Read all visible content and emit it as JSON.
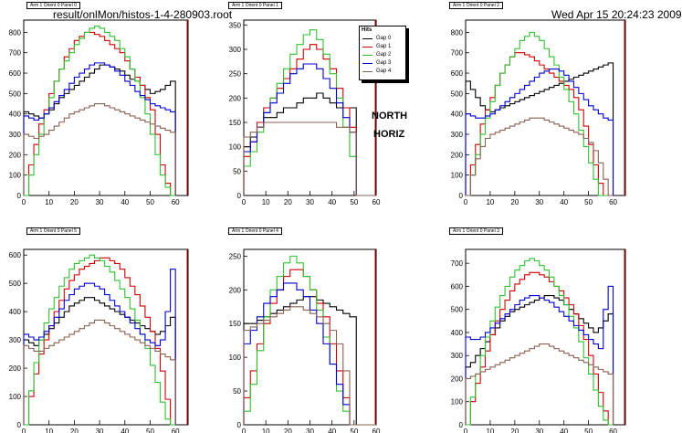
{
  "header": {
    "filename": "result/onlMon/histos-1-4-280903.root",
    "datetime": "Wed Apr 15 20:24:23 2009"
  },
  "annotations": {
    "line1": "NORTH",
    "line2": "HORIZ"
  },
  "legend": {
    "title": "Hits",
    "entries": [
      {
        "name": "Gap 0",
        "color": "#000000"
      },
      {
        "name": "Gap 1",
        "color": "#d00000"
      },
      {
        "name": "Gap 2",
        "color": "#30c030"
      },
      {
        "name": "Gap 3",
        "color": "#0000d0"
      },
      {
        "name": "Gap 4",
        "color": "#8b6050"
      }
    ]
  },
  "chart_data": [
    {
      "type": "line",
      "title": "Arm 1 Orient 0 Panel 0",
      "xlim": [
        0,
        65
      ],
      "ylim": [
        0,
        860
      ],
      "xticks": [
        0,
        10,
        20,
        30,
        40,
        50,
        60
      ],
      "yticks": [
        0,
        100,
        200,
        300,
        400,
        500,
        600,
        700,
        800
      ],
      "series": [
        {
          "name": "Gap 0",
          "values": [
            410,
            400,
            390,
            380,
            400,
            420,
            450,
            480,
            500,
            520,
            540,
            560,
            580,
            600,
            620,
            640,
            640,
            630,
            620,
            610,
            590,
            570,
            560,
            540,
            520,
            500,
            510,
            520,
            540,
            560
          ]
        },
        {
          "name": "Gap 1",
          "values": [
            0,
            150,
            250,
            350,
            420,
            500,
            560,
            620,
            680,
            720,
            760,
            780,
            800,
            800,
            790,
            780,
            760,
            740,
            720,
            700,
            660,
            620,
            580,
            540,
            480,
            420,
            300,
            150,
            60,
            0
          ]
        },
        {
          "name": "Gap 2",
          "values": [
            0,
            100,
            200,
            300,
            400,
            480,
            560,
            620,
            660,
            700,
            740,
            770,
            800,
            820,
            830,
            820,
            800,
            780,
            760,
            720,
            680,
            620,
            560,
            480,
            400,
            300,
            200,
            100,
            40,
            0
          ]
        },
        {
          "name": "Gap 3",
          "values": [
            390,
            380,
            370,
            380,
            400,
            430,
            460,
            490,
            520,
            550,
            580,
            600,
            620,
            640,
            650,
            650,
            640,
            630,
            610,
            590,
            560,
            540,
            510,
            490,
            470,
            450,
            440,
            430,
            420,
            410
          ]
        },
        {
          "name": "Gap 4",
          "values": [
            300,
            290,
            280,
            290,
            300,
            320,
            340,
            360,
            380,
            400,
            410,
            420,
            430,
            440,
            450,
            450,
            440,
            430,
            420,
            410,
            400,
            390,
            380,
            370,
            360,
            350,
            340,
            330,
            320,
            310
          ]
        }
      ]
    },
    {
      "type": "line",
      "title": "Arm 1 Orient 0 Panel 1",
      "xlim": [
        0,
        60
      ],
      "ylim": [
        0,
        360
      ],
      "xticks": [
        0,
        10,
        20,
        30,
        40,
        50,
        60
      ],
      "yticks": [
        0,
        50,
        100,
        150,
        200,
        250,
        300,
        350
      ],
      "series": [
        {
          "name": "Gap 0",
          "values": [
            100,
            120,
            140,
            160,
            160,
            170,
            180,
            180,
            190,
            200,
            200,
            210,
            200,
            190,
            180,
            180,
            180,
            0,
            0,
            0
          ]
        },
        {
          "name": "Gap 1",
          "values": [
            80,
            110,
            150,
            180,
            200,
            220,
            240,
            260,
            280,
            300,
            310,
            300,
            280,
            260,
            220,
            180,
            140,
            0,
            0,
            0
          ]
        },
        {
          "name": "Gap 2",
          "values": [
            60,
            90,
            130,
            170,
            200,
            230,
            260,
            290,
            310,
            330,
            340,
            320,
            290,
            250,
            200,
            140,
            80,
            0,
            0,
            0
          ]
        },
        {
          "name": "Gap 3",
          "values": [
            90,
            110,
            140,
            170,
            190,
            210,
            230,
            250,
            260,
            270,
            270,
            260,
            240,
            220,
            190,
            160,
            130,
            0,
            0,
            0
          ]
        },
        {
          "name": "Gap 4",
          "values": [
            120,
            130,
            140,
            150,
            150,
            150,
            150,
            150,
            150,
            150,
            150,
            150,
            150,
            150,
            140,
            140,
            130,
            0,
            0,
            0
          ]
        }
      ]
    },
    {
      "type": "line",
      "title": "Arm 1 Orient 0 Panel 2",
      "xlim": [
        0,
        65
      ],
      "ylim": [
        0,
        860
      ],
      "xticks": [
        0,
        10,
        20,
        30,
        40,
        50,
        60
      ],
      "yticks": [
        0,
        100,
        200,
        300,
        400,
        500,
        600,
        700,
        800
      ],
      "series": [
        {
          "name": "Gap 0",
          "values": [
            560,
            520,
            480,
            440,
            420,
            410,
            420,
            430,
            440,
            450,
            460,
            470,
            480,
            490,
            500,
            510,
            520,
            530,
            540,
            550,
            560,
            570,
            580,
            590,
            600,
            610,
            620,
            630,
            640,
            650
          ]
        },
        {
          "name": "Gap 1",
          "values": [
            0,
            150,
            250,
            350,
            420,
            480,
            540,
            600,
            640,
            680,
            700,
            700,
            690,
            680,
            660,
            640,
            620,
            600,
            580,
            560,
            540,
            520,
            480,
            420,
            340,
            250,
            150,
            60,
            0,
            0
          ]
        },
        {
          "name": "Gap 2",
          "values": [
            0,
            100,
            200,
            300,
            380,
            460,
            540,
            600,
            640,
            680,
            720,
            760,
            780,
            800,
            780,
            760,
            720,
            680,
            640,
            580,
            520,
            460,
            400,
            320,
            240,
            160,
            80,
            0,
            0,
            0
          ]
        },
        {
          "name": "Gap 3",
          "values": [
            400,
            390,
            380,
            380,
            390,
            400,
            420,
            440,
            460,
            480,
            500,
            520,
            540,
            560,
            580,
            600,
            610,
            620,
            620,
            610,
            590,
            560,
            530,
            500,
            470,
            440,
            420,
            400,
            380,
            370
          ]
        },
        {
          "name": "Gap 4",
          "values": [
            0,
            100,
            180,
            240,
            280,
            300,
            310,
            320,
            330,
            340,
            350,
            360,
            370,
            380,
            380,
            380,
            370,
            360,
            350,
            340,
            330,
            320,
            310,
            300,
            280,
            260,
            220,
            160,
            80,
            0
          ]
        }
      ]
    },
    {
      "type": "line",
      "title": "Arm 1 Orient 0 Panel 5",
      "xlim": [
        0,
        65
      ],
      "ylim": [
        0,
        620
      ],
      "xticks": [
        0,
        10,
        20,
        30,
        40,
        50,
        60
      ],
      "yticks": [
        0,
        100,
        200,
        300,
        400,
        500,
        600
      ],
      "series": [
        {
          "name": "Gap 0",
          "values": [
            300,
            290,
            280,
            300,
            320,
            340,
            360,
            380,
            400,
            420,
            430,
            440,
            450,
            450,
            440,
            430,
            420,
            410,
            400,
            390,
            380,
            370,
            360,
            350,
            340,
            330,
            320,
            330,
            350,
            380
          ]
        },
        {
          "name": "Gap 1",
          "values": [
            0,
            100,
            180,
            250,
            300,
            350,
            400,
            440,
            480,
            510,
            530,
            550,
            560,
            570,
            580,
            590,
            590,
            580,
            570,
            550,
            520,
            490,
            460,
            420,
            380,
            330,
            270,
            190,
            90,
            0
          ]
        },
        {
          "name": "Gap 2",
          "values": [
            0,
            120,
            220,
            300,
            360,
            410,
            450,
            490,
            520,
            550,
            570,
            580,
            590,
            600,
            590,
            580,
            560,
            540,
            510,
            480,
            450,
            410,
            370,
            320,
            270,
            210,
            150,
            80,
            20,
            0
          ]
        },
        {
          "name": "Gap 3",
          "values": [
            320,
            310,
            300,
            310,
            330,
            350,
            380,
            410,
            440,
            460,
            480,
            490,
            500,
            500,
            490,
            480,
            460,
            440,
            420,
            400,
            380,
            360,
            340,
            320,
            300,
            290,
            280,
            300,
            400,
            550
          ]
        },
        {
          "name": "Gap 4",
          "values": [
            280,
            270,
            260,
            260,
            270,
            280,
            290,
            300,
            310,
            320,
            330,
            340,
            350,
            360,
            370,
            370,
            360,
            350,
            340,
            330,
            320,
            310,
            300,
            290,
            280,
            270,
            260,
            250,
            240,
            230
          ]
        }
      ]
    },
    {
      "type": "line",
      "title": "Arm 1 Orient 0 Panel 4",
      "xlim": [
        0,
        60
      ],
      "ylim": [
        0,
        260
      ],
      "xticks": [
        0,
        10,
        20,
        30,
        40,
        50,
        60
      ],
      "yticks": [
        0,
        50,
        100,
        150,
        200,
        250
      ],
      "series": [
        {
          "name": "Gap 0",
          "values": [
            150,
            150,
            155,
            160,
            165,
            170,
            175,
            180,
            185,
            190,
            190,
            185,
            180,
            175,
            170,
            165,
            160,
            0,
            0,
            0
          ]
        },
        {
          "name": "Gap 1",
          "values": [
            40,
            80,
            120,
            150,
            180,
            200,
            220,
            230,
            230,
            220,
            200,
            180,
            160,
            120,
            80,
            40,
            0,
            0,
            0,
            0
          ]
        },
        {
          "name": "Gap 2",
          "values": [
            20,
            60,
            110,
            160,
            200,
            220,
            240,
            250,
            240,
            220,
            200,
            170,
            130,
            90,
            50,
            20,
            0,
            0,
            0,
            0
          ]
        },
        {
          "name": "Gap 3",
          "values": [
            120,
            140,
            160,
            180,
            190,
            200,
            210,
            210,
            200,
            190,
            170,
            150,
            120,
            90,
            60,
            30,
            0,
            0,
            0,
            0
          ]
        },
        {
          "name": "Gap 4",
          "values": [
            140,
            145,
            150,
            155,
            160,
            165,
            170,
            175,
            175,
            170,
            165,
            160,
            150,
            140,
            120,
            80,
            0,
            0,
            0,
            0
          ]
        }
      ]
    },
    {
      "type": "line",
      "title": "Arm 1 Orient 0 Panel 3",
      "xlim": [
        0,
        65
      ],
      "ylim": [
        0,
        760
      ],
      "xticks": [
        0,
        10,
        20,
        30,
        40,
        50,
        60
      ],
      "yticks": [
        0,
        100,
        200,
        300,
        400,
        500,
        600,
        700
      ],
      "series": [
        {
          "name": "Gap 0",
          "values": [
            250,
            270,
            300,
            330,
            360,
            390,
            420,
            450,
            470,
            490,
            500,
            510,
            520,
            530,
            540,
            550,
            560,
            560,
            550,
            540,
            520,
            500,
            480,
            460,
            440,
            420,
            400,
            420,
            450,
            480
          ]
        },
        {
          "name": "Gap 1",
          "values": [
            0,
            100,
            180,
            250,
            320,
            390,
            450,
            500,
            540,
            580,
            610,
            630,
            650,
            660,
            660,
            650,
            640,
            620,
            600,
            580,
            550,
            520,
            480,
            430,
            370,
            300,
            220,
            140,
            60,
            0
          ]
        },
        {
          "name": "Gap 2",
          "values": [
            0,
            120,
            220,
            300,
            380,
            450,
            510,
            560,
            600,
            640,
            670,
            690,
            710,
            720,
            710,
            690,
            670,
            640,
            600,
            560,
            520,
            470,
            420,
            360,
            290,
            220,
            150,
            80,
            20,
            0
          ]
        },
        {
          "name": "Gap 3",
          "values": [
            380,
            370,
            370,
            380,
            400,
            420,
            440,
            460,
            480,
            500,
            520,
            540,
            550,
            560,
            560,
            550,
            540,
            530,
            510,
            490,
            470,
            450,
            430,
            410,
            390,
            370,
            350,
            330,
            500,
            600
          ]
        },
        {
          "name": "Gap 4",
          "values": [
            200,
            210,
            220,
            230,
            240,
            250,
            260,
            270,
            280,
            290,
            300,
            310,
            320,
            330,
            340,
            350,
            350,
            340,
            330,
            320,
            310,
            300,
            290,
            280,
            270,
            260,
            250,
            240,
            230,
            220
          ]
        }
      ]
    }
  ]
}
